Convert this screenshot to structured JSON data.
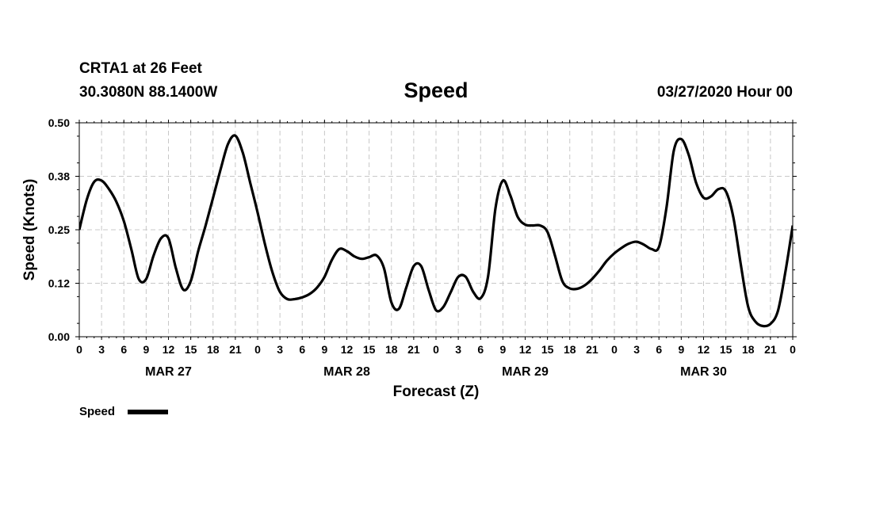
{
  "header": {
    "station": "CRTA1 at 26 Feet",
    "coordinates": "30.3080N 88.1400W",
    "issued": "03/27/2020 Hour 00"
  },
  "chart_data": {
    "type": "line",
    "title": "Speed",
    "xlabel": "Forecast (Z)",
    "ylabel": "Speed (Knots)",
    "ylim": [
      0,
      0.5
    ],
    "xlim": [
      0,
      96
    ],
    "grid": true,
    "legend_position": "bottom-left",
    "y_ticks": [
      "0.00",
      "0.12",
      "0.25",
      "0.38",
      "0.50"
    ],
    "x_tick_labels": [
      "0",
      "3",
      "6",
      "9",
      "12",
      "15",
      "18",
      "21",
      "0",
      "3",
      "6",
      "9",
      "12",
      "15",
      "18",
      "21",
      "0",
      "3",
      "6",
      "9",
      "12",
      "15",
      "18",
      "21",
      "0",
      "3",
      "6",
      "9",
      "12",
      "15",
      "18",
      "21",
      "0"
    ],
    "date_labels": [
      "MAR 27",
      "MAR 28",
      "MAR 29",
      "MAR 30"
    ],
    "line_color": "#000000",
    "series": [
      {
        "name": "Speed",
        "x": [
          0,
          1,
          2,
          3,
          4,
          5,
          6,
          7,
          8,
          9,
          10,
          11,
          12,
          13,
          14,
          15,
          16,
          17,
          18,
          19,
          20,
          21,
          22,
          23,
          24,
          25,
          26,
          27,
          28,
          29,
          30,
          31,
          32,
          33,
          34,
          35,
          36,
          37,
          38,
          39,
          40,
          41,
          42,
          43,
          44,
          45,
          46,
          47,
          48,
          49,
          50,
          51,
          52,
          53,
          54,
          55,
          56,
          57,
          58,
          59,
          60,
          61,
          62,
          63,
          64,
          65,
          66,
          67,
          68,
          69,
          70,
          71,
          72,
          73,
          74,
          75,
          76,
          77,
          78,
          79,
          80,
          81,
          82,
          83,
          84,
          85,
          86,
          87,
          88,
          89,
          90,
          91,
          92,
          93,
          94,
          95,
          96
        ],
        "values": [
          0.25,
          0.32,
          0.362,
          0.365,
          0.345,
          0.315,
          0.27,
          0.205,
          0.135,
          0.135,
          0.19,
          0.23,
          0.23,
          0.16,
          0.11,
          0.13,
          0.2,
          0.26,
          0.325,
          0.39,
          0.45,
          0.47,
          0.43,
          0.36,
          0.29,
          0.215,
          0.15,
          0.105,
          0.088,
          0.088,
          0.092,
          0.1,
          0.115,
          0.14,
          0.18,
          0.205,
          0.2,
          0.188,
          0.182,
          0.186,
          0.19,
          0.16,
          0.08,
          0.065,
          0.115,
          0.165,
          0.165,
          0.11,
          0.062,
          0.07,
          0.105,
          0.14,
          0.14,
          0.105,
          0.09,
          0.14,
          0.3,
          0.365,
          0.33,
          0.28,
          0.262,
          0.26,
          0.26,
          0.245,
          0.19,
          0.13,
          0.113,
          0.112,
          0.12,
          0.135,
          0.155,
          0.178,
          0.195,
          0.208,
          0.218,
          0.222,
          0.215,
          0.205,
          0.21,
          0.3,
          0.435,
          0.462,
          0.425,
          0.36,
          0.325,
          0.328,
          0.345,
          0.34,
          0.28,
          0.17,
          0.07,
          0.035,
          0.025,
          0.03,
          0.06,
          0.15,
          0.26
        ]
      }
    ]
  }
}
